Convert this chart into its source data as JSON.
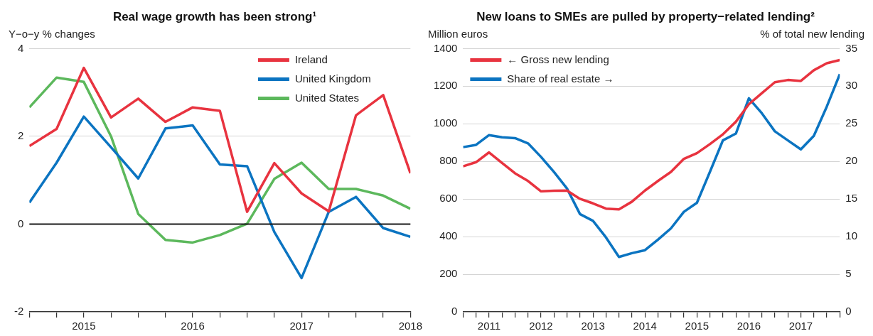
{
  "chart_data": [
    {
      "type": "line",
      "title": "Real wage growth has been strong¹",
      "ylabel": "Y−o−y % changes",
      "x": [
        2014.5,
        2014.75,
        2015,
        2015.25,
        2015.5,
        2015.75,
        2016,
        2016.25,
        2016.5,
        2016.75,
        2017,
        2017.25,
        2017.5,
        2017.75,
        2018
      ],
      "series": [
        {
          "name": "Ireland",
          "color": "#e8333f",
          "values": [
            1.78,
            2.17,
            3.56,
            2.43,
            2.86,
            2.33,
            2.66,
            2.58,
            0.28,
            1.39,
            0.7,
            0.29,
            2.48,
            2.94,
            1.16
          ]
        },
        {
          "name": "United Kingdom",
          "color": "#0b74c1",
          "values": [
            0.49,
            1.4,
            2.45,
            1.75,
            1.04,
            2.18,
            2.25,
            1.36,
            1.32,
            -0.18,
            -1.23,
            0.28,
            0.62,
            -0.09,
            -0.29
          ]
        },
        {
          "name": "United States",
          "color": "#5cb85c",
          "values": [
            2.66,
            3.34,
            3.24,
            2.0,
            0.23,
            -0.36,
            -0.42,
            -0.25,
            0.01,
            1.03,
            1.4,
            0.8,
            0.8,
            0.65,
            0.35
          ]
        }
      ],
      "xlim": [
        2014.5,
        2018
      ],
      "xticks": [
        {
          "value": 2014.5,
          "label": null
        },
        {
          "value": 2014.75,
          "label": null
        },
        2015,
        {
          "value": 2015.25,
          "label": null
        },
        {
          "value": 2015.5,
          "label": null
        },
        {
          "value": 2015.75,
          "label": null
        },
        2016,
        {
          "value": 2016.25,
          "label": null
        },
        {
          "value": 2016.5,
          "label": null
        },
        {
          "value": 2016.75,
          "label": null
        },
        2017,
        {
          "value": 2017.25,
          "label": null
        },
        {
          "value": 2017.5,
          "label": null
        },
        {
          "value": 2017.75,
          "label": null
        },
        2018
      ],
      "ylim": [
        -2,
        4
      ],
      "yticks": [
        -2,
        0,
        2,
        4
      ],
      "ref_lines": [
        {
          "axis": "y",
          "value": 0,
          "color": "#1a1a1a"
        }
      ],
      "grid": "y",
      "legend": "top right",
      "line_style": "solid",
      "marker": "none"
    },
    {
      "type": "line",
      "title": "New loans to SMEs are pulled by property−related lending²",
      "ylabel": "Million euros",
      "y2label": "% of total new lending",
      "x": [
        2011,
        2011.25,
        2011.5,
        2011.75,
        2012,
        2012.25,
        2012.5,
        2012.75,
        2013,
        2013.25,
        2013.5,
        2013.75,
        2014,
        2014.25,
        2014.5,
        2014.75,
        2015,
        2015.25,
        2015.5,
        2015.75,
        2016,
        2016.25,
        2016.5,
        2016.75,
        2017,
        2017.25,
        2017.5,
        2017.75,
        2018,
        2018.25
      ],
      "series": [
        {
          "name": "← Gross new lending",
          "color": "#e8333f",
          "values": [
            774,
            796,
            848,
            792,
            737,
            696,
            641,
            644,
            645,
            601,
            577,
            549,
            545,
            586,
            645,
            696,
            744,
            814,
            844,
            892,
            944,
            1011,
            1104,
            1163,
            1221,
            1233,
            1228,
            1285,
            1322,
            1339
          ]
        },
        {
          "name": "Share of real estate →",
          "color": "#0b74c1",
          "axis": "y2",
          "values": [
            21.9,
            22.2,
            23.5,
            23.2,
            23.1,
            22.4,
            20.6,
            18.6,
            16.4,
            13.0,
            12.1,
            9.9,
            7.3,
            7.8,
            8.2,
            9.6,
            11.1,
            13.3,
            14.5,
            18.6,
            22.8,
            23.7,
            28.4,
            26.4,
            24.0,
            22.8,
            21.6,
            23.4,
            27.3,
            31.6
          ]
        }
      ],
      "xlim": [
        2011,
        2018.25
      ],
      "xticks": [
        {
          "value": 2011,
          "label": null
        },
        {
          "value": 2011.25,
          "label": null
        },
        {
          "value": 2011.5,
          "label": "2011"
        },
        {
          "value": 2011.75,
          "label": null
        },
        {
          "value": 2012,
          "label": null
        },
        {
          "value": 2012.25,
          "label": null
        },
        {
          "value": 2012.5,
          "label": "2012"
        },
        {
          "value": 2012.75,
          "label": null
        },
        {
          "value": 2013,
          "label": null
        },
        {
          "value": 2013.25,
          "label": null
        },
        {
          "value": 2013.5,
          "label": "2013"
        },
        {
          "value": 2013.75,
          "label": null
        },
        {
          "value": 2014,
          "label": null
        },
        {
          "value": 2014.25,
          "label": null
        },
        {
          "value": 2014.5,
          "label": "2014"
        },
        {
          "value": 2014.75,
          "label": null
        },
        {
          "value": 2015,
          "label": null
        },
        {
          "value": 2015.25,
          "label": null
        },
        {
          "value": 2015.5,
          "label": "2015"
        },
        {
          "value": 2015.75,
          "label": null
        },
        {
          "value": 2016,
          "label": null
        },
        {
          "value": 2016.25,
          "label": null
        },
        {
          "value": 2016.5,
          "label": "2016"
        },
        {
          "value": 2016.75,
          "label": null
        },
        {
          "value": 2017,
          "label": null
        },
        {
          "value": 2017.25,
          "label": null
        },
        {
          "value": 2017.5,
          "label": "2017"
        },
        {
          "value": 2017.75,
          "label": null
        },
        {
          "value": 2018,
          "label": null
        },
        {
          "value": 2018.25,
          "label": null
        }
      ],
      "ylim": [
        0,
        1400
      ],
      "yticks": [
        0,
        200,
        400,
        600,
        800,
        1000,
        1200,
        1400
      ],
      "y2lim": [
        0,
        35
      ],
      "y2ticks": [
        0,
        5,
        10,
        15,
        20,
        25,
        30,
        35
      ],
      "grid": "y",
      "legend": "top left",
      "line_style": "solid",
      "marker": "none"
    }
  ]
}
